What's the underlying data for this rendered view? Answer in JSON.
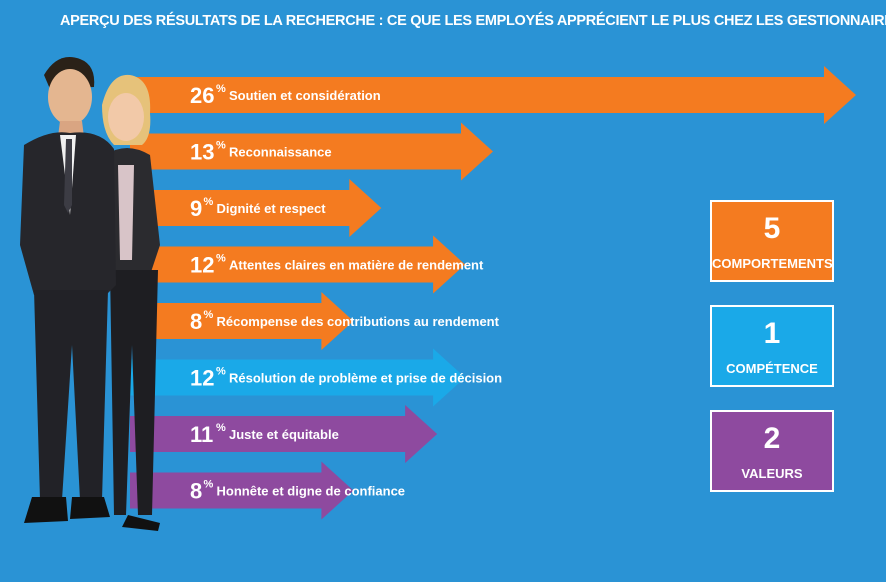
{
  "title": "APERÇU DES RÉSULTATS DE LA RECHERCHE : CE QUE LES EMPLOYÉS APPRÉCIENT LE PLUS CHEZ LES GESTIONNAIRES",
  "colors": {
    "background": "#2a93d5",
    "behavior": "#f47b20",
    "competence": "#1aa9e8",
    "values": "#8e4a9f"
  },
  "chart_data": {
    "type": "bar",
    "orientation": "horizontal",
    "unit": "%",
    "categories": [
      "Soutien et considération",
      "Reconnaissance",
      "Dignité et respect",
      "Attentes claires en matière de rendement",
      "Récompense des contributions au rendement",
      "Résolution de problème et prise de décision",
      "Juste et équitable",
      "Honnête et digne de confiance"
    ],
    "values": [
      26,
      13,
      9,
      12,
      8,
      12,
      11,
      8
    ],
    "value_labels": [
      "26",
      "13",
      "9",
      "12",
      "8",
      "12",
      "11",
      "8"
    ],
    "groups": [
      "behavior",
      "behavior",
      "behavior",
      "behavior",
      "behavior",
      "competence",
      "values",
      "values"
    ]
  },
  "summary": [
    {
      "number": "5",
      "label": "COMPORTEMENTS",
      "color": "#f47b20"
    },
    {
      "number": "1",
      "label": "COMPÉTENCE",
      "color": "#1aa9e8"
    },
    {
      "number": "2",
      "label": "VALEURS",
      "color": "#8e4a9f"
    }
  ]
}
